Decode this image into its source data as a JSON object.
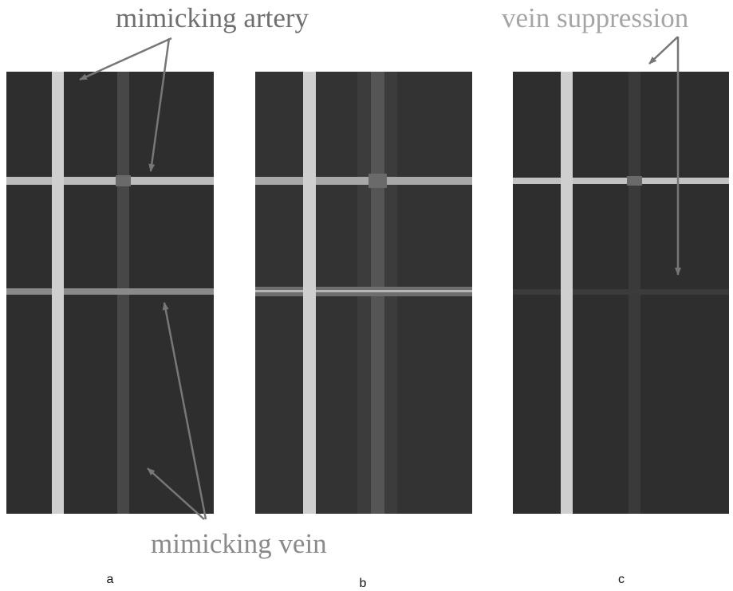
{
  "annotations": {
    "artery": "mimicking artery",
    "vein": "mimicking vein",
    "suppression": "vein suppression"
  },
  "panels": [
    {
      "label": "a"
    },
    {
      "label": "b"
    },
    {
      "label": "c"
    }
  ]
}
